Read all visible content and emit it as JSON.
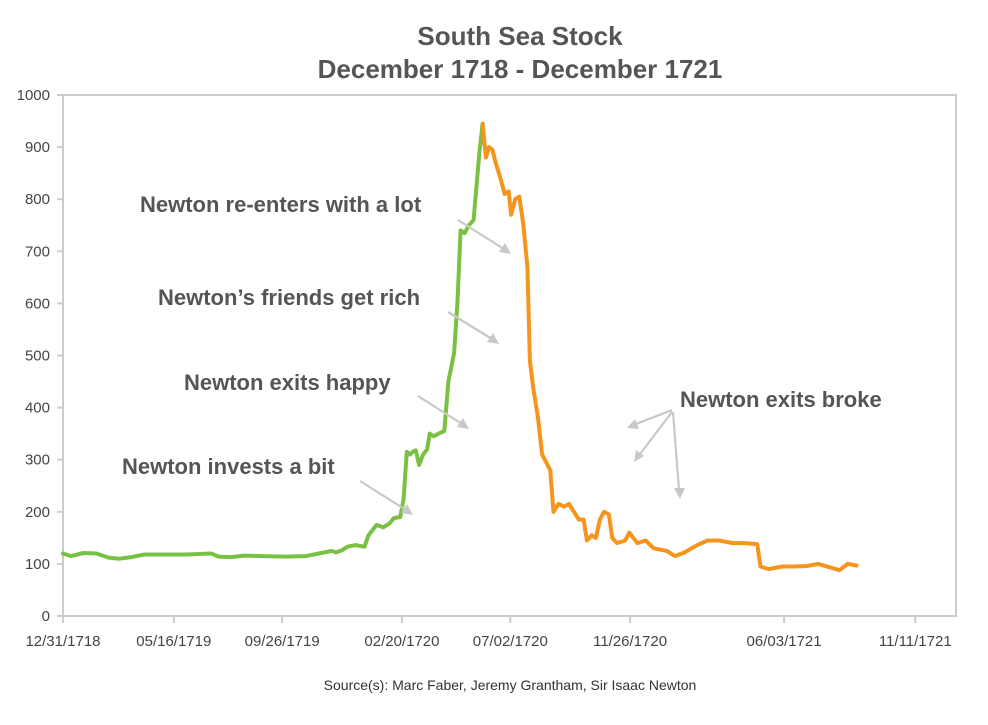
{
  "chart_data": {
    "type": "line",
    "title": "South Sea Stock",
    "subtitle": "December 1718 - December 1721",
    "ylim": [
      0,
      1000
    ],
    "y_ticks": [
      "0",
      "100",
      "200",
      "300",
      "400",
      "500",
      "600",
      "700",
      "800",
      "900",
      "1000"
    ],
    "x_ticks": [
      "12/31/1718",
      "05/16/1719",
      "09/26/1719",
      "02/20/1720",
      "07/02/1720",
      "11/26/1720",
      "06/03/1721",
      "11/11/1721"
    ],
    "x_range": [
      "12/31/1718",
      "12/31/1721"
    ],
    "grid": false,
    "colors": {
      "rise": "#7ac143",
      "fall": "#f7941d",
      "axis": "#cccccc",
      "text": "#555555",
      "arrow": "#c8c8c8"
    },
    "series": [
      {
        "segment": "rise",
        "points": [
          [
            "1718-12-31",
            120
          ],
          [
            "1719-01-10",
            115
          ],
          [
            "1719-01-25",
            121
          ],
          [
            "1719-02-10",
            120
          ],
          [
            "1719-02-25",
            112
          ],
          [
            "1719-03-10",
            110
          ],
          [
            "1719-03-25",
            113
          ],
          [
            "1719-04-10",
            118
          ],
          [
            "1719-05-01",
            118
          ],
          [
            "1719-06-01",
            118
          ],
          [
            "1719-07-01",
            120
          ],
          [
            "1719-07-10",
            114
          ],
          [
            "1719-07-25",
            113
          ],
          [
            "1719-08-10",
            116
          ],
          [
            "1719-09-01",
            115
          ],
          [
            "1719-10-01",
            114
          ],
          [
            "1719-10-25",
            115
          ],
          [
            "1719-11-10",
            120
          ],
          [
            "1719-11-20",
            123
          ],
          [
            "1719-11-25",
            125
          ],
          [
            "1719-12-01",
            122
          ],
          [
            "1719-12-08",
            126
          ],
          [
            "1719-12-15",
            133
          ],
          [
            "1719-12-25",
            136
          ],
          [
            "1720-01-05",
            133
          ],
          [
            "1720-01-10",
            155
          ],
          [
            "1720-01-20",
            175
          ],
          [
            "1720-01-28",
            170
          ],
          [
            "1720-02-05",
            178
          ],
          [
            "1720-02-10",
            188
          ],
          [
            "1720-02-18",
            190
          ],
          [
            "1720-02-22",
            225
          ],
          [
            "1720-02-26",
            315
          ],
          [
            "1720-03-01",
            310
          ],
          [
            "1720-03-04",
            315
          ],
          [
            "1720-03-08",
            318
          ],
          [
            "1720-03-12",
            290
          ],
          [
            "1720-03-17",
            310
          ],
          [
            "1720-03-22",
            320
          ],
          [
            "1720-03-25",
            350
          ],
          [
            "1720-03-30",
            345
          ],
          [
            "1720-04-05",
            350
          ],
          [
            "1720-04-12",
            355
          ],
          [
            "1720-04-17",
            450
          ],
          [
            "1720-04-24",
            505
          ],
          [
            "1720-04-28",
            600
          ],
          [
            "1720-05-02",
            740
          ],
          [
            "1720-05-07",
            735
          ],
          [
            "1720-05-12",
            750
          ],
          [
            "1720-05-18",
            760
          ],
          [
            "1720-05-25",
            890
          ],
          [
            "1720-05-29",
            945
          ]
        ]
      },
      {
        "segment": "fall",
        "points": [
          [
            "1720-05-29",
            945
          ],
          [
            "1720-06-02",
            880
          ],
          [
            "1720-06-06",
            900
          ],
          [
            "1720-06-10",
            895
          ],
          [
            "1720-06-14",
            870
          ],
          [
            "1720-06-20",
            840
          ],
          [
            "1720-06-25",
            810
          ],
          [
            "1720-06-30",
            815
          ],
          [
            "1720-07-03",
            770
          ],
          [
            "1720-07-08",
            800
          ],
          [
            "1720-07-13",
            805
          ],
          [
            "1720-07-18",
            750
          ],
          [
            "1720-07-23",
            670
          ],
          [
            "1720-07-26",
            490
          ],
          [
            "1720-07-30",
            440
          ],
          [
            "1720-08-05",
            380
          ],
          [
            "1720-08-10",
            310
          ],
          [
            "1720-08-15",
            295
          ],
          [
            "1720-08-20",
            280
          ],
          [
            "1720-08-24",
            200
          ],
          [
            "1720-08-30",
            215
          ],
          [
            "1720-09-06",
            210
          ],
          [
            "1720-09-12",
            215
          ],
          [
            "1720-09-18",
            200
          ],
          [
            "1720-09-24",
            185
          ],
          [
            "1720-09-30",
            185
          ],
          [
            "1720-10-04",
            145
          ],
          [
            "1720-10-10",
            155
          ],
          [
            "1720-10-15",
            150
          ],
          [
            "1720-10-20",
            185
          ],
          [
            "1720-10-25",
            200
          ],
          [
            "1720-10-31",
            195
          ],
          [
            "1720-11-04",
            150
          ],
          [
            "1720-11-10",
            140
          ],
          [
            "1720-11-20",
            145
          ],
          [
            "1720-11-25",
            160
          ],
          [
            "1720-12-05",
            140
          ],
          [
            "1720-12-15",
            145
          ],
          [
            "1720-12-25",
            130
          ],
          [
            "1721-01-10",
            125
          ],
          [
            "1721-01-20",
            115
          ],
          [
            "1721-02-01",
            122
          ],
          [
            "1721-02-15",
            135
          ],
          [
            "1721-03-01",
            145
          ],
          [
            "1721-03-15",
            145
          ],
          [
            "1721-04-01",
            140
          ],
          [
            "1721-04-15",
            140
          ],
          [
            "1721-05-01",
            138
          ],
          [
            "1721-05-05",
            95
          ],
          [
            "1721-05-15",
            90
          ],
          [
            "1721-06-01",
            95
          ],
          [
            "1721-06-15",
            95
          ],
          [
            "1721-07-01",
            96
          ],
          [
            "1721-07-15",
            100
          ],
          [
            "1721-08-01",
            92
          ],
          [
            "1721-08-10",
            88
          ],
          [
            "1721-08-20",
            100
          ],
          [
            "1721-08-31",
            97
          ]
        ]
      }
    ],
    "annotations": [
      {
        "text": "Newton re-enters with a lot"
      },
      {
        "text": "Newton’s friends get rich"
      },
      {
        "text": "Newton exits happy"
      },
      {
        "text": "Newton invests a bit"
      },
      {
        "text": "Newton exits broke"
      }
    ],
    "source": "Source(s): Marc Faber, Jeremy Grantham, Sir Isaac Newton"
  }
}
